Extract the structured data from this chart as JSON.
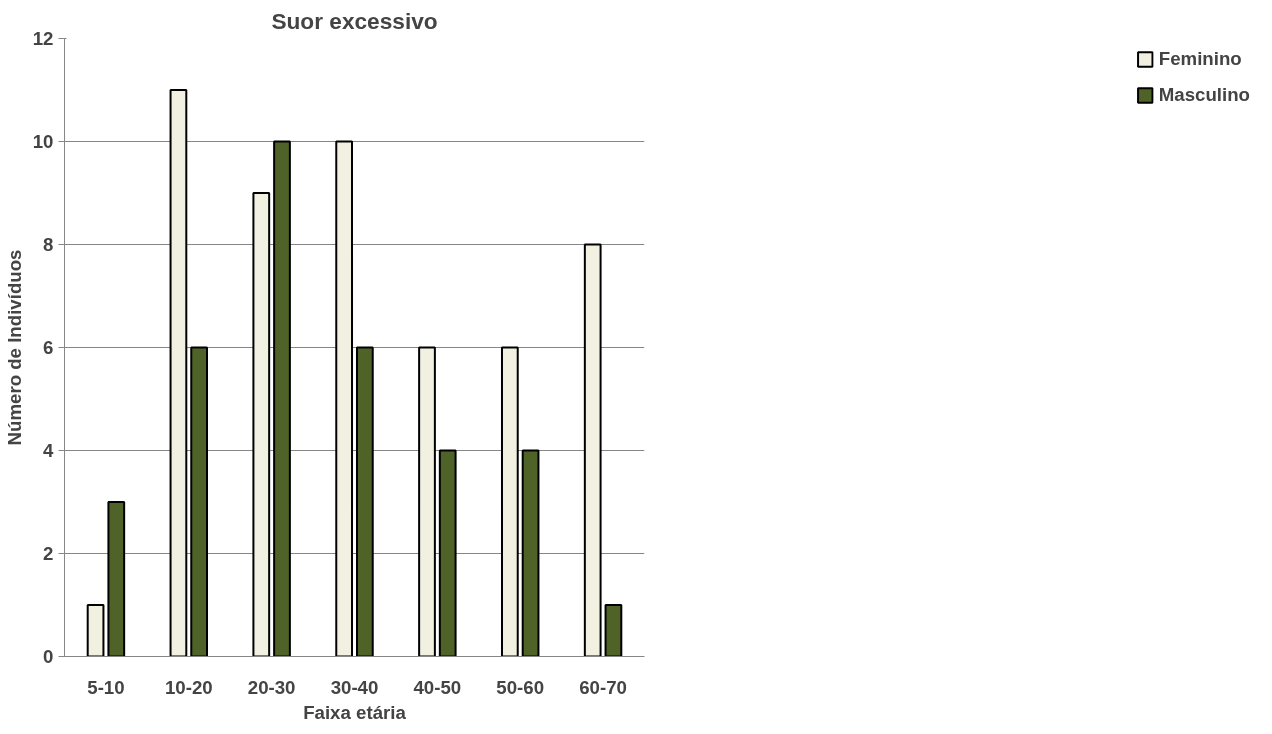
{
  "chart_data": {
    "type": "bar",
    "title": "Suor excessivo",
    "xlabel": "Faixa etária",
    "ylabel": "Número de Indivíduos",
    "categories": [
      "5-10",
      "10-20",
      "20-30",
      "30-40",
      "40-50",
      "50-60",
      "60-70"
    ],
    "series": [
      {
        "name": "Feminino",
        "color": "#f2f0e0",
        "values": [
          1,
          11,
          9,
          10,
          6,
          6,
          8
        ]
      },
      {
        "name": "Masculino",
        "color": "#4f6228",
        "values": [
          3,
          6,
          10,
          6,
          4,
          4,
          1
        ]
      }
    ],
    "ylim": [
      0,
      12
    ],
    "yticks": [
      0,
      2,
      4,
      6,
      8,
      10,
      12
    ],
    "grid": "y",
    "legend": "right"
  }
}
